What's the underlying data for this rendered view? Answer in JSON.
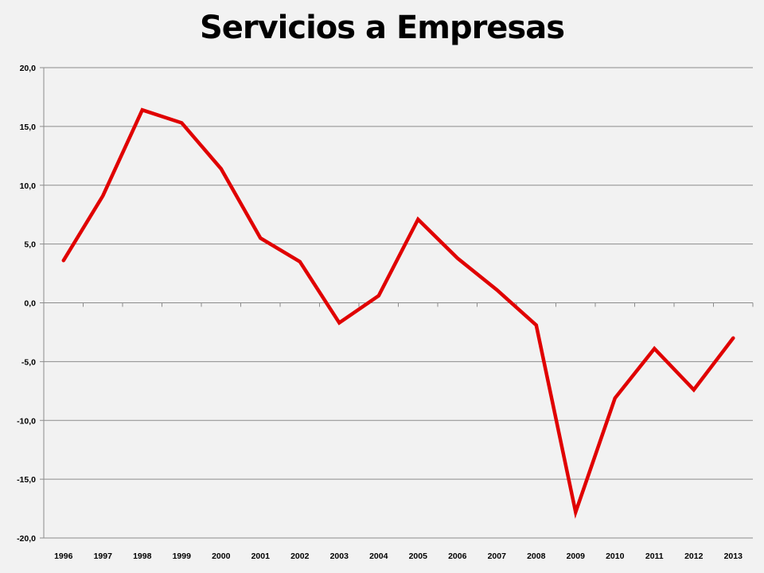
{
  "chart_data": {
    "type": "line",
    "title": "Servicios a Empresas",
    "xlabel": "",
    "ylabel": "",
    "categories": [
      "1996",
      "1997",
      "1998",
      "1999",
      "2000",
      "2001",
      "2002",
      "2003",
      "2004",
      "2005",
      "2006",
      "2007",
      "2008",
      "2009",
      "2010",
      "2011",
      "2012",
      "2013"
    ],
    "series": [
      {
        "values": [
          3.6,
          9.1,
          16.4,
          15.3,
          11.4,
          5.5,
          3.5,
          -1.7,
          0.6,
          7.1,
          3.8,
          1.1,
          -1.9,
          -17.8,
          -8.1,
          -3.9,
          -7.4,
          -3.0
        ]
      }
    ],
    "ylim": [
      -20,
      20
    ],
    "yticks": [
      "20,0",
      "15,0",
      "10,0",
      "5,0",
      "0,0",
      "-5,0",
      "-10,0",
      "-15,0",
      "-20,0"
    ],
    "ytick_values": [
      20,
      15,
      10,
      5,
      0,
      -5,
      -10,
      -15,
      -20
    ],
    "grid": true,
    "line_color": "#e00000"
  }
}
